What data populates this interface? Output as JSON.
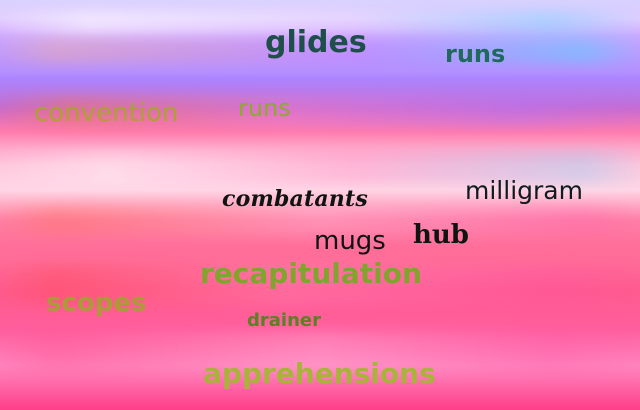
{
  "canvas": {
    "background": {
      "palette": [
        "#d9d2ff",
        "#b98eff",
        "#ff6fa6",
        "#ffd7e6",
        "#ff4f86",
        "#ff3d88"
      ]
    },
    "words": [
      {
        "text": "glides",
        "color": "#1f4f4a"
      },
      {
        "text": "runs",
        "color": "#1f6a5c"
      },
      {
        "text": "convention",
        "color": "#a7a52d"
      },
      {
        "text": "runs",
        "color": "#8caa2c"
      },
      {
        "text": "combatants",
        "color": "#0f1412"
      },
      {
        "text": "milligram",
        "color": "#0f1b1e"
      },
      {
        "text": "mugs",
        "color": "#0f1412"
      },
      {
        "text": "hub",
        "color": "#0f1412"
      },
      {
        "text": "recapitulation",
        "color": "#7fa52d"
      },
      {
        "text": "scopes",
        "color": "#9ea52d"
      },
      {
        "text": "drainer",
        "color": "#5e7f23"
      },
      {
        "text": "apprehensions",
        "color": "#a9b23b"
      }
    ]
  }
}
